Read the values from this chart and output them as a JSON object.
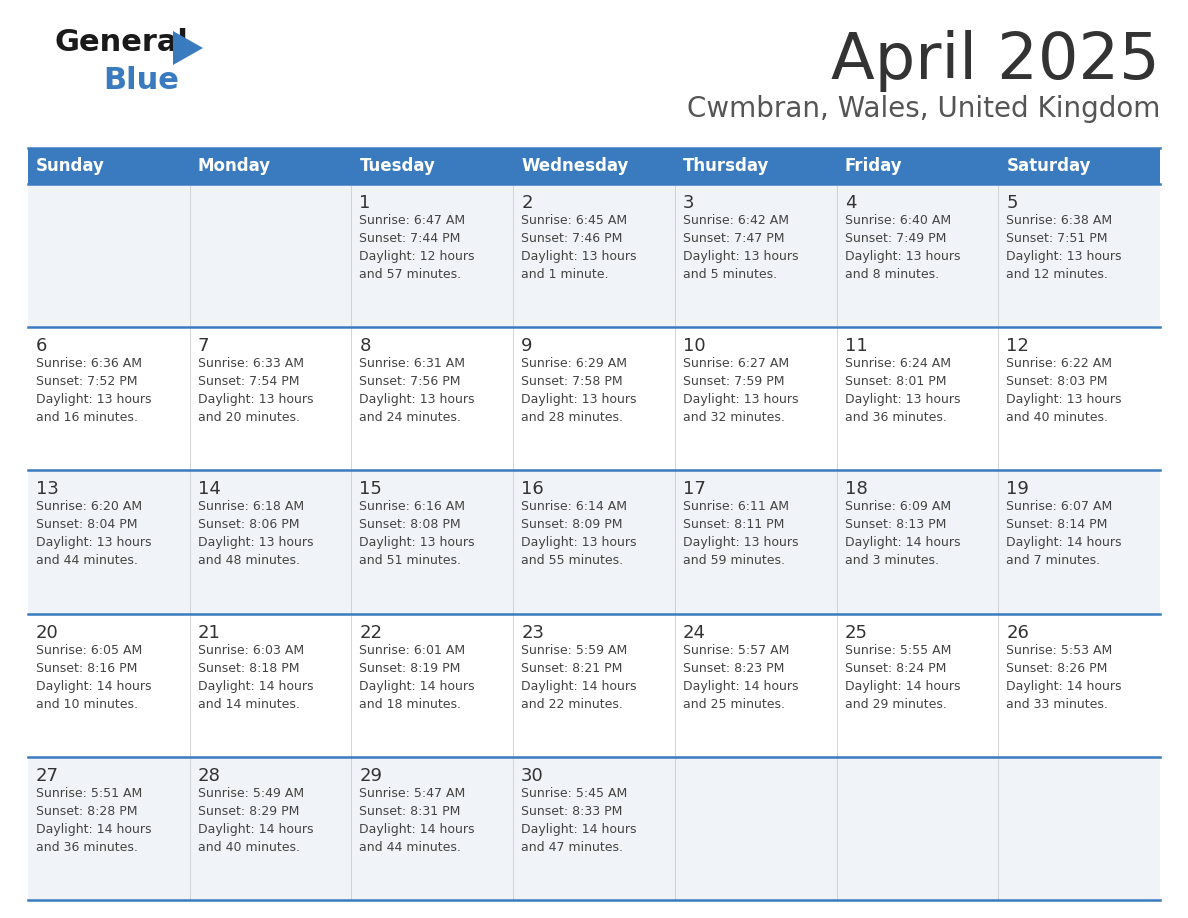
{
  "title": "April 2025",
  "subtitle": "Cwmbran, Wales, United Kingdom",
  "days_of_week": [
    "Sunday",
    "Monday",
    "Tuesday",
    "Wednesday",
    "Thursday",
    "Friday",
    "Saturday"
  ],
  "header_bg": "#3a7bbf",
  "header_text": "#ffffff",
  "row_bg_odd": "#f0f4f8",
  "row_bg_even": "#ffffff",
  "row_border_color": "#3a7bbf",
  "title_color": "#333333",
  "subtitle_color": "#555555",
  "day_number_color": "#333333",
  "day_text_color": "#444444",
  "weeks": [
    [
      {
        "day": "",
        "sunrise": "",
        "sunset": "",
        "daylight": ""
      },
      {
        "day": "",
        "sunrise": "",
        "sunset": "",
        "daylight": ""
      },
      {
        "day": "1",
        "sunrise": "Sunrise: 6:47 AM",
        "sunset": "Sunset: 7:44 PM",
        "daylight": "Daylight: 12 hours\nand 57 minutes."
      },
      {
        "day": "2",
        "sunrise": "Sunrise: 6:45 AM",
        "sunset": "Sunset: 7:46 PM",
        "daylight": "Daylight: 13 hours\nand 1 minute."
      },
      {
        "day": "3",
        "sunrise": "Sunrise: 6:42 AM",
        "sunset": "Sunset: 7:47 PM",
        "daylight": "Daylight: 13 hours\nand 5 minutes."
      },
      {
        "day": "4",
        "sunrise": "Sunrise: 6:40 AM",
        "sunset": "Sunset: 7:49 PM",
        "daylight": "Daylight: 13 hours\nand 8 minutes."
      },
      {
        "day": "5",
        "sunrise": "Sunrise: 6:38 AM",
        "sunset": "Sunset: 7:51 PM",
        "daylight": "Daylight: 13 hours\nand 12 minutes."
      }
    ],
    [
      {
        "day": "6",
        "sunrise": "Sunrise: 6:36 AM",
        "sunset": "Sunset: 7:52 PM",
        "daylight": "Daylight: 13 hours\nand 16 minutes."
      },
      {
        "day": "7",
        "sunrise": "Sunrise: 6:33 AM",
        "sunset": "Sunset: 7:54 PM",
        "daylight": "Daylight: 13 hours\nand 20 minutes."
      },
      {
        "day": "8",
        "sunrise": "Sunrise: 6:31 AM",
        "sunset": "Sunset: 7:56 PM",
        "daylight": "Daylight: 13 hours\nand 24 minutes."
      },
      {
        "day": "9",
        "sunrise": "Sunrise: 6:29 AM",
        "sunset": "Sunset: 7:58 PM",
        "daylight": "Daylight: 13 hours\nand 28 minutes."
      },
      {
        "day": "10",
        "sunrise": "Sunrise: 6:27 AM",
        "sunset": "Sunset: 7:59 PM",
        "daylight": "Daylight: 13 hours\nand 32 minutes."
      },
      {
        "day": "11",
        "sunrise": "Sunrise: 6:24 AM",
        "sunset": "Sunset: 8:01 PM",
        "daylight": "Daylight: 13 hours\nand 36 minutes."
      },
      {
        "day": "12",
        "sunrise": "Sunrise: 6:22 AM",
        "sunset": "Sunset: 8:03 PM",
        "daylight": "Daylight: 13 hours\nand 40 minutes."
      }
    ],
    [
      {
        "day": "13",
        "sunrise": "Sunrise: 6:20 AM",
        "sunset": "Sunset: 8:04 PM",
        "daylight": "Daylight: 13 hours\nand 44 minutes."
      },
      {
        "day": "14",
        "sunrise": "Sunrise: 6:18 AM",
        "sunset": "Sunset: 8:06 PM",
        "daylight": "Daylight: 13 hours\nand 48 minutes."
      },
      {
        "day": "15",
        "sunrise": "Sunrise: 6:16 AM",
        "sunset": "Sunset: 8:08 PM",
        "daylight": "Daylight: 13 hours\nand 51 minutes."
      },
      {
        "day": "16",
        "sunrise": "Sunrise: 6:14 AM",
        "sunset": "Sunset: 8:09 PM",
        "daylight": "Daylight: 13 hours\nand 55 minutes."
      },
      {
        "day": "17",
        "sunrise": "Sunrise: 6:11 AM",
        "sunset": "Sunset: 8:11 PM",
        "daylight": "Daylight: 13 hours\nand 59 minutes."
      },
      {
        "day": "18",
        "sunrise": "Sunrise: 6:09 AM",
        "sunset": "Sunset: 8:13 PM",
        "daylight": "Daylight: 14 hours\nand 3 minutes."
      },
      {
        "day": "19",
        "sunrise": "Sunrise: 6:07 AM",
        "sunset": "Sunset: 8:14 PM",
        "daylight": "Daylight: 14 hours\nand 7 minutes."
      }
    ],
    [
      {
        "day": "20",
        "sunrise": "Sunrise: 6:05 AM",
        "sunset": "Sunset: 8:16 PM",
        "daylight": "Daylight: 14 hours\nand 10 minutes."
      },
      {
        "day": "21",
        "sunrise": "Sunrise: 6:03 AM",
        "sunset": "Sunset: 8:18 PM",
        "daylight": "Daylight: 14 hours\nand 14 minutes."
      },
      {
        "day": "22",
        "sunrise": "Sunrise: 6:01 AM",
        "sunset": "Sunset: 8:19 PM",
        "daylight": "Daylight: 14 hours\nand 18 minutes."
      },
      {
        "day": "23",
        "sunrise": "Sunrise: 5:59 AM",
        "sunset": "Sunset: 8:21 PM",
        "daylight": "Daylight: 14 hours\nand 22 minutes."
      },
      {
        "day": "24",
        "sunrise": "Sunrise: 5:57 AM",
        "sunset": "Sunset: 8:23 PM",
        "daylight": "Daylight: 14 hours\nand 25 minutes."
      },
      {
        "day": "25",
        "sunrise": "Sunrise: 5:55 AM",
        "sunset": "Sunset: 8:24 PM",
        "daylight": "Daylight: 14 hours\nand 29 minutes."
      },
      {
        "day": "26",
        "sunrise": "Sunrise: 5:53 AM",
        "sunset": "Sunset: 8:26 PM",
        "daylight": "Daylight: 14 hours\nand 33 minutes."
      }
    ],
    [
      {
        "day": "27",
        "sunrise": "Sunrise: 5:51 AM",
        "sunset": "Sunset: 8:28 PM",
        "daylight": "Daylight: 14 hours\nand 36 minutes."
      },
      {
        "day": "28",
        "sunrise": "Sunrise: 5:49 AM",
        "sunset": "Sunset: 8:29 PM",
        "daylight": "Daylight: 14 hours\nand 40 minutes."
      },
      {
        "day": "29",
        "sunrise": "Sunrise: 5:47 AM",
        "sunset": "Sunset: 8:31 PM",
        "daylight": "Daylight: 14 hours\nand 44 minutes."
      },
      {
        "day": "30",
        "sunrise": "Sunrise: 5:45 AM",
        "sunset": "Sunset: 8:33 PM",
        "daylight": "Daylight: 14 hours\nand 47 minutes."
      },
      {
        "day": "",
        "sunrise": "",
        "sunset": "",
        "daylight": ""
      },
      {
        "day": "",
        "sunrise": "",
        "sunset": "",
        "daylight": ""
      },
      {
        "day": "",
        "sunrise": "",
        "sunset": "",
        "daylight": ""
      }
    ]
  ]
}
